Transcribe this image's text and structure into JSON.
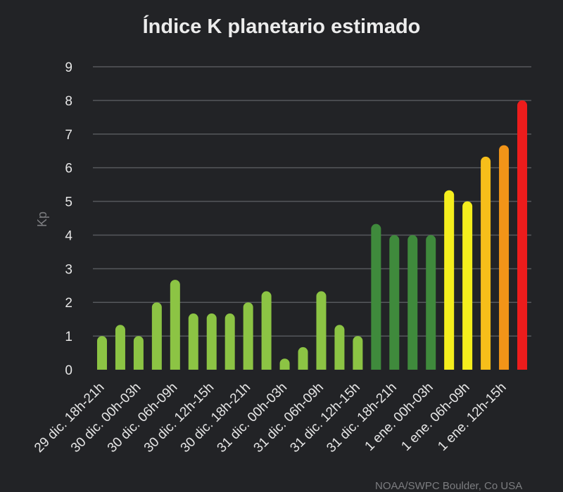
{
  "chart_data": {
    "type": "bar",
    "title": "Índice K planetario estimado",
    "xlabel": "",
    "ylabel": "Kp",
    "ylim": [
      0,
      9
    ],
    "yticks": [
      0,
      1,
      2,
      3,
      4,
      5,
      6,
      7,
      8,
      9
    ],
    "grid": true,
    "legend": "none",
    "x_tick_labels": [
      "29 dic. 18h-21h",
      "30 dic. 00h-03h",
      "30 dic. 06h-09h",
      "30 dic. 12h-15h",
      "30 dic. 18h-21h",
      "31 dic. 00h-03h",
      "31 dic. 06h-09h",
      "31 dic. 12h-15h",
      "31 dic. 18h-21h",
      "1 ene. 00h-03h",
      "1 ene. 06h-09h",
      "1 ene. 12h-15h"
    ],
    "values": [
      1.0,
      1.33,
      1.0,
      2.0,
      2.67,
      1.67,
      1.67,
      1.67,
      2.0,
      2.33,
      0.33,
      0.67,
      2.33,
      1.33,
      1.0,
      4.33,
      4.0,
      4.0,
      4.0,
      5.33,
      5.0,
      6.33,
      6.67,
      8.0
    ],
    "colors": [
      "#8cc444",
      "#8cc444",
      "#8cc444",
      "#8cc444",
      "#8cc444",
      "#8cc444",
      "#8cc444",
      "#8cc444",
      "#8cc444",
      "#8cc444",
      "#8cc444",
      "#8cc444",
      "#8cc444",
      "#8cc444",
      "#8cc444",
      "#3f8a3c",
      "#3f8a3c",
      "#3f8a3c",
      "#3f8a3c",
      "#f5ee1d",
      "#f5ee1d",
      "#f6be1a",
      "#f29418",
      "#ed1c1c"
    ]
  },
  "credit": "NOAA/SWPC Boulder, Co USA"
}
